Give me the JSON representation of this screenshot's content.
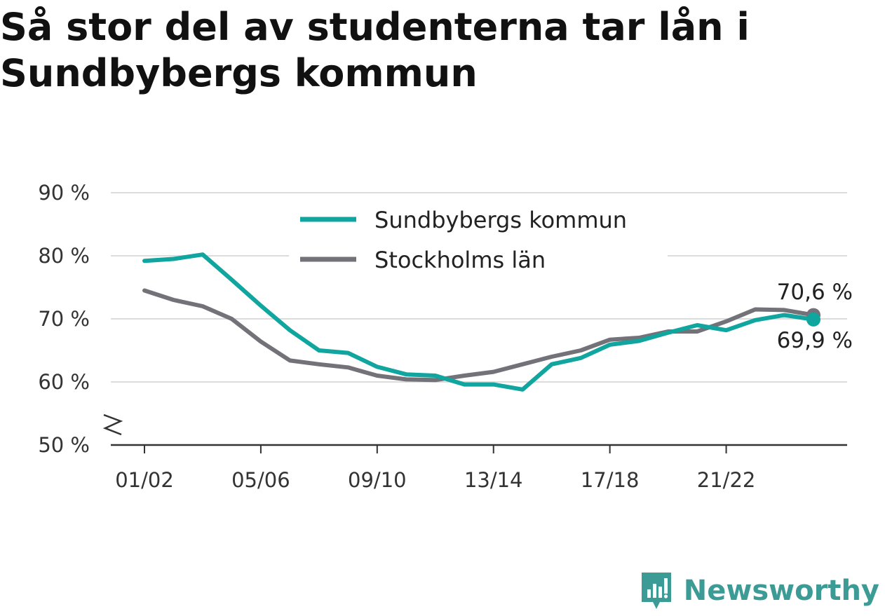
{
  "chart_data": {
    "type": "line",
    "title": "Så stor del av studenterna tar lån i Sundbybergs kommun",
    "x": [
      "01/02",
      "02/03",
      "03/04",
      "04/05",
      "05/06",
      "06/07",
      "07/08",
      "08/09",
      "09/10",
      "10/11",
      "11/12",
      "12/13",
      "13/14",
      "14/15",
      "15/16",
      "16/17",
      "17/18",
      "18/19",
      "19/20",
      "20/21",
      "21/22",
      "22/23",
      "23/24",
      "24/25"
    ],
    "x_tick_labels": [
      "01/02",
      "05/06",
      "09/10",
      "13/14",
      "17/18",
      "21/22"
    ],
    "y_tick_labels": [
      "90 %",
      "80 %",
      "70 %",
      "60 %",
      "50 %"
    ],
    "y_ticks": [
      90,
      80,
      70,
      60,
      50
    ],
    "ylim": [
      50,
      90
    ],
    "axis_break": true,
    "grid": true,
    "legend_position": "top-center",
    "series": [
      {
        "name": "Sundbybergs kommun",
        "color": "#10a69f",
        "values": [
          79.2,
          79.5,
          80.2,
          76.2,
          72.1,
          68.2,
          65.0,
          64.6,
          62.4,
          61.2,
          61.0,
          59.6,
          59.6,
          58.8,
          62.8,
          63.8,
          65.9,
          66.5,
          67.8,
          69.0,
          68.2,
          69.8,
          70.6,
          69.9
        ]
      },
      {
        "name": "Stockholms län",
        "color": "#737278",
        "values": [
          74.5,
          73.0,
          72.0,
          70.0,
          66.4,
          63.4,
          62.8,
          62.3,
          61.0,
          60.4,
          60.3,
          61.0,
          61.6,
          62.8,
          64.0,
          65.0,
          66.7,
          67.0,
          68.0,
          68.0,
          69.6,
          71.5,
          71.4,
          70.6
        ]
      }
    ],
    "end_labels": {
      "upper": "70,6 %",
      "lower": "69,9 %"
    }
  },
  "brand": {
    "name": "Newsworthy",
    "icon": "newsworthy-logo-icon",
    "color": "#3d9b96"
  }
}
